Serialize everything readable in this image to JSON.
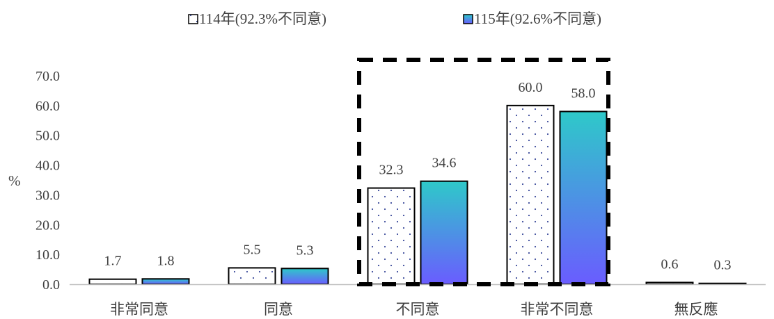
{
  "chart_data": {
    "type": "bar",
    "categories": [
      "非常同意",
      "同意",
      "不同意",
      "非常不同意",
      "無反應"
    ],
    "series": [
      {
        "name": "114年(92.3%不同意)",
        "values": [
          1.7,
          5.5,
          32.3,
          60.0,
          0.6
        ]
      },
      {
        "name": "115年(92.6%不同意)",
        "values": [
          1.8,
          5.3,
          34.6,
          58.0,
          0.3
        ]
      }
    ],
    "value_labels": [
      [
        "1.7",
        "5.5",
        "32.3",
        "60.0",
        "0.6"
      ],
      [
        "1.8",
        "5.3",
        "34.6",
        "58.0",
        "0.3"
      ]
    ],
    "ylabel": "%",
    "ylim": [
      0,
      70
    ],
    "yticks": [
      "0.0",
      "10.0",
      "20.0",
      "30.0",
      "40.0",
      "50.0",
      "60.0",
      "70.0"
    ],
    "grid": false,
    "legend_position": "top",
    "highlight_categories": [
      "不同意",
      "非常不同意"
    ],
    "colors": {
      "series1_fill": "#ffffff",
      "series1_dots": "#3a4a9a",
      "series2_gradient_top": "#2ec9c9",
      "series2_gradient_bottom": "#6a5cff",
      "bar_outline": "#000000",
      "axis": "#bfbfbf",
      "text": "#404040"
    }
  }
}
